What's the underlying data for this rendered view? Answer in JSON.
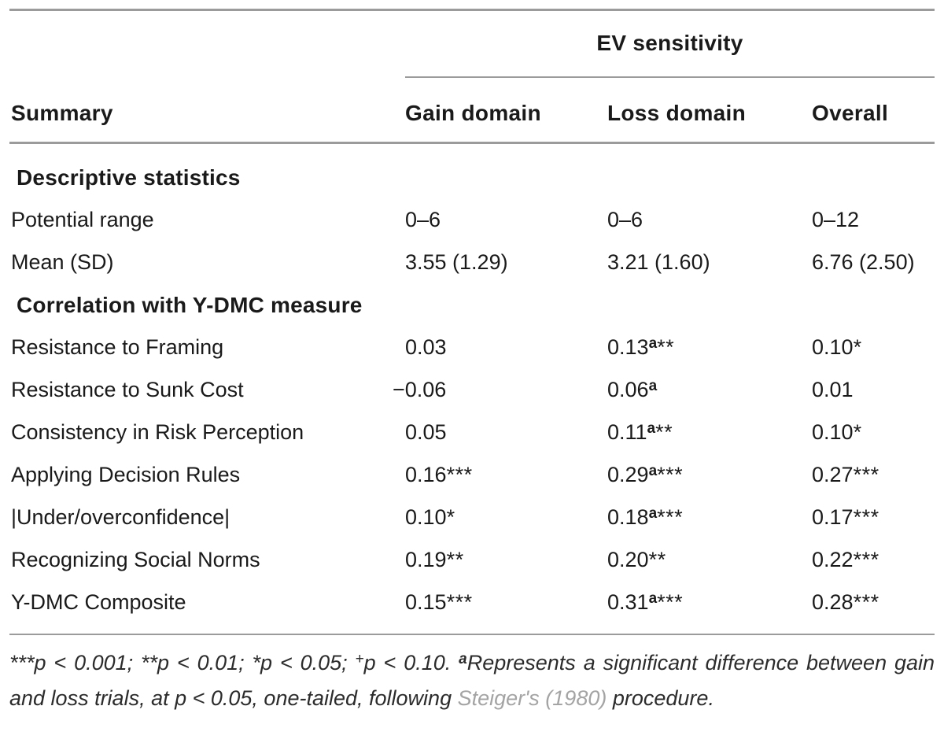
{
  "colors": {
    "rule": "#9b9b9b",
    "text": "#1a1a1a",
    "citation_link": "#a4a4a4"
  },
  "table": {
    "spanner": "EV sensitivity",
    "columns": [
      "Summary",
      "Gain domain",
      "Loss domain",
      "Overall"
    ],
    "sections": [
      {
        "header": "Descriptive statistics",
        "rows": [
          {
            "label": "Potential range",
            "cells": [
              {
                "v": "0–6"
              },
              {
                "v": "0–6"
              },
              {
                "v": "0–12"
              }
            ]
          },
          {
            "label": "Mean (SD)",
            "cells": [
              {
                "v": "3.55 (1.29)"
              },
              {
                "v": "3.21 (1.60)"
              },
              {
                "v": "6.76 (2.50)"
              }
            ]
          }
        ]
      },
      {
        "header": "Correlation with Y-DMC measure",
        "rows": [
          {
            "label": "Resistance to Framing",
            "cells": [
              {
                "v": "0.03"
              },
              {
                "v": "0.13",
                "s": "a",
                "st": "**"
              },
              {
                "v": "0.10",
                "st": "*"
              }
            ]
          },
          {
            "label": "Resistance to Sunk Cost",
            "cells": [
              {
                "v": "−0.06"
              },
              {
                "v": "0.06",
                "s": "a"
              },
              {
                "v": "0.01"
              }
            ]
          },
          {
            "label": "Consistency in Risk Perception",
            "cells": [
              {
                "v": "0.05"
              },
              {
                "v": "0.11",
                "s": "a",
                "st": "**"
              },
              {
                "v": "0.10",
                "st": "*"
              }
            ]
          },
          {
            "label": "Applying Decision Rules",
            "cells": [
              {
                "v": "0.16",
                "st": "***"
              },
              {
                "v": "0.29",
                "s": "a",
                "st": "***"
              },
              {
                "v": "0.27",
                "st": "***"
              }
            ]
          },
          {
            "label": "|Under/overconfidence|",
            "cells": [
              {
                "v": "0.10",
                "st": "*"
              },
              {
                "v": "0.18",
                "s": "a",
                "st": "***"
              },
              {
                "v": "0.17",
                "st": "***"
              }
            ]
          },
          {
            "label": "Recognizing Social Norms",
            "cells": [
              {
                "v": "0.19",
                "st": "**"
              },
              {
                "v": "0.20",
                "st": "**"
              },
              {
                "v": "0.22",
                "st": "***"
              }
            ]
          },
          {
            "label": "Y-DMC Composite",
            "cells": [
              {
                "v": "0.15",
                "st": "***"
              },
              {
                "v": "0.31",
                "s": "a",
                "st": "***"
              },
              {
                "v": "0.28",
                "st": "***"
              }
            ]
          }
        ]
      }
    ]
  },
  "footnote": {
    "sig": "***p < 0.001; **p < 0.01; *p < 0.05; ",
    "plus_sup": "+",
    "p10": "p < 0.10. ",
    "a_sup": "a",
    "main": "Represents a significant difference between gain and loss trials, at p < 0.05, one-tailed, following ",
    "citation": "Steiger's (1980)",
    "tail": " procedure."
  }
}
